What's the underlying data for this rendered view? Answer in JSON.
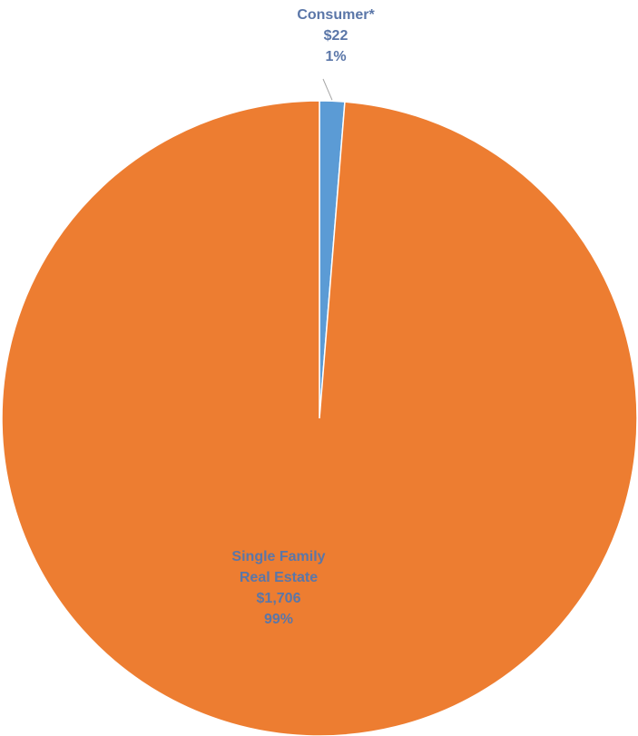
{
  "chart_data": {
    "type": "pie",
    "slices": [
      {
        "label_lines": [
          "Consumer*"
        ],
        "value": 22,
        "value_text": "$22",
        "percent": 1,
        "percent_text": "1%",
        "color": "#5b9bd5"
      },
      {
        "label_lines": [
          "Single Family",
          "Real Estate"
        ],
        "value": 1706,
        "value_text": "$1,706",
        "percent": 99,
        "percent_text": "99%",
        "color": "#ed7d31"
      }
    ],
    "label_color": "#5a76a8",
    "leader_line_color": "#a6a6a6"
  }
}
